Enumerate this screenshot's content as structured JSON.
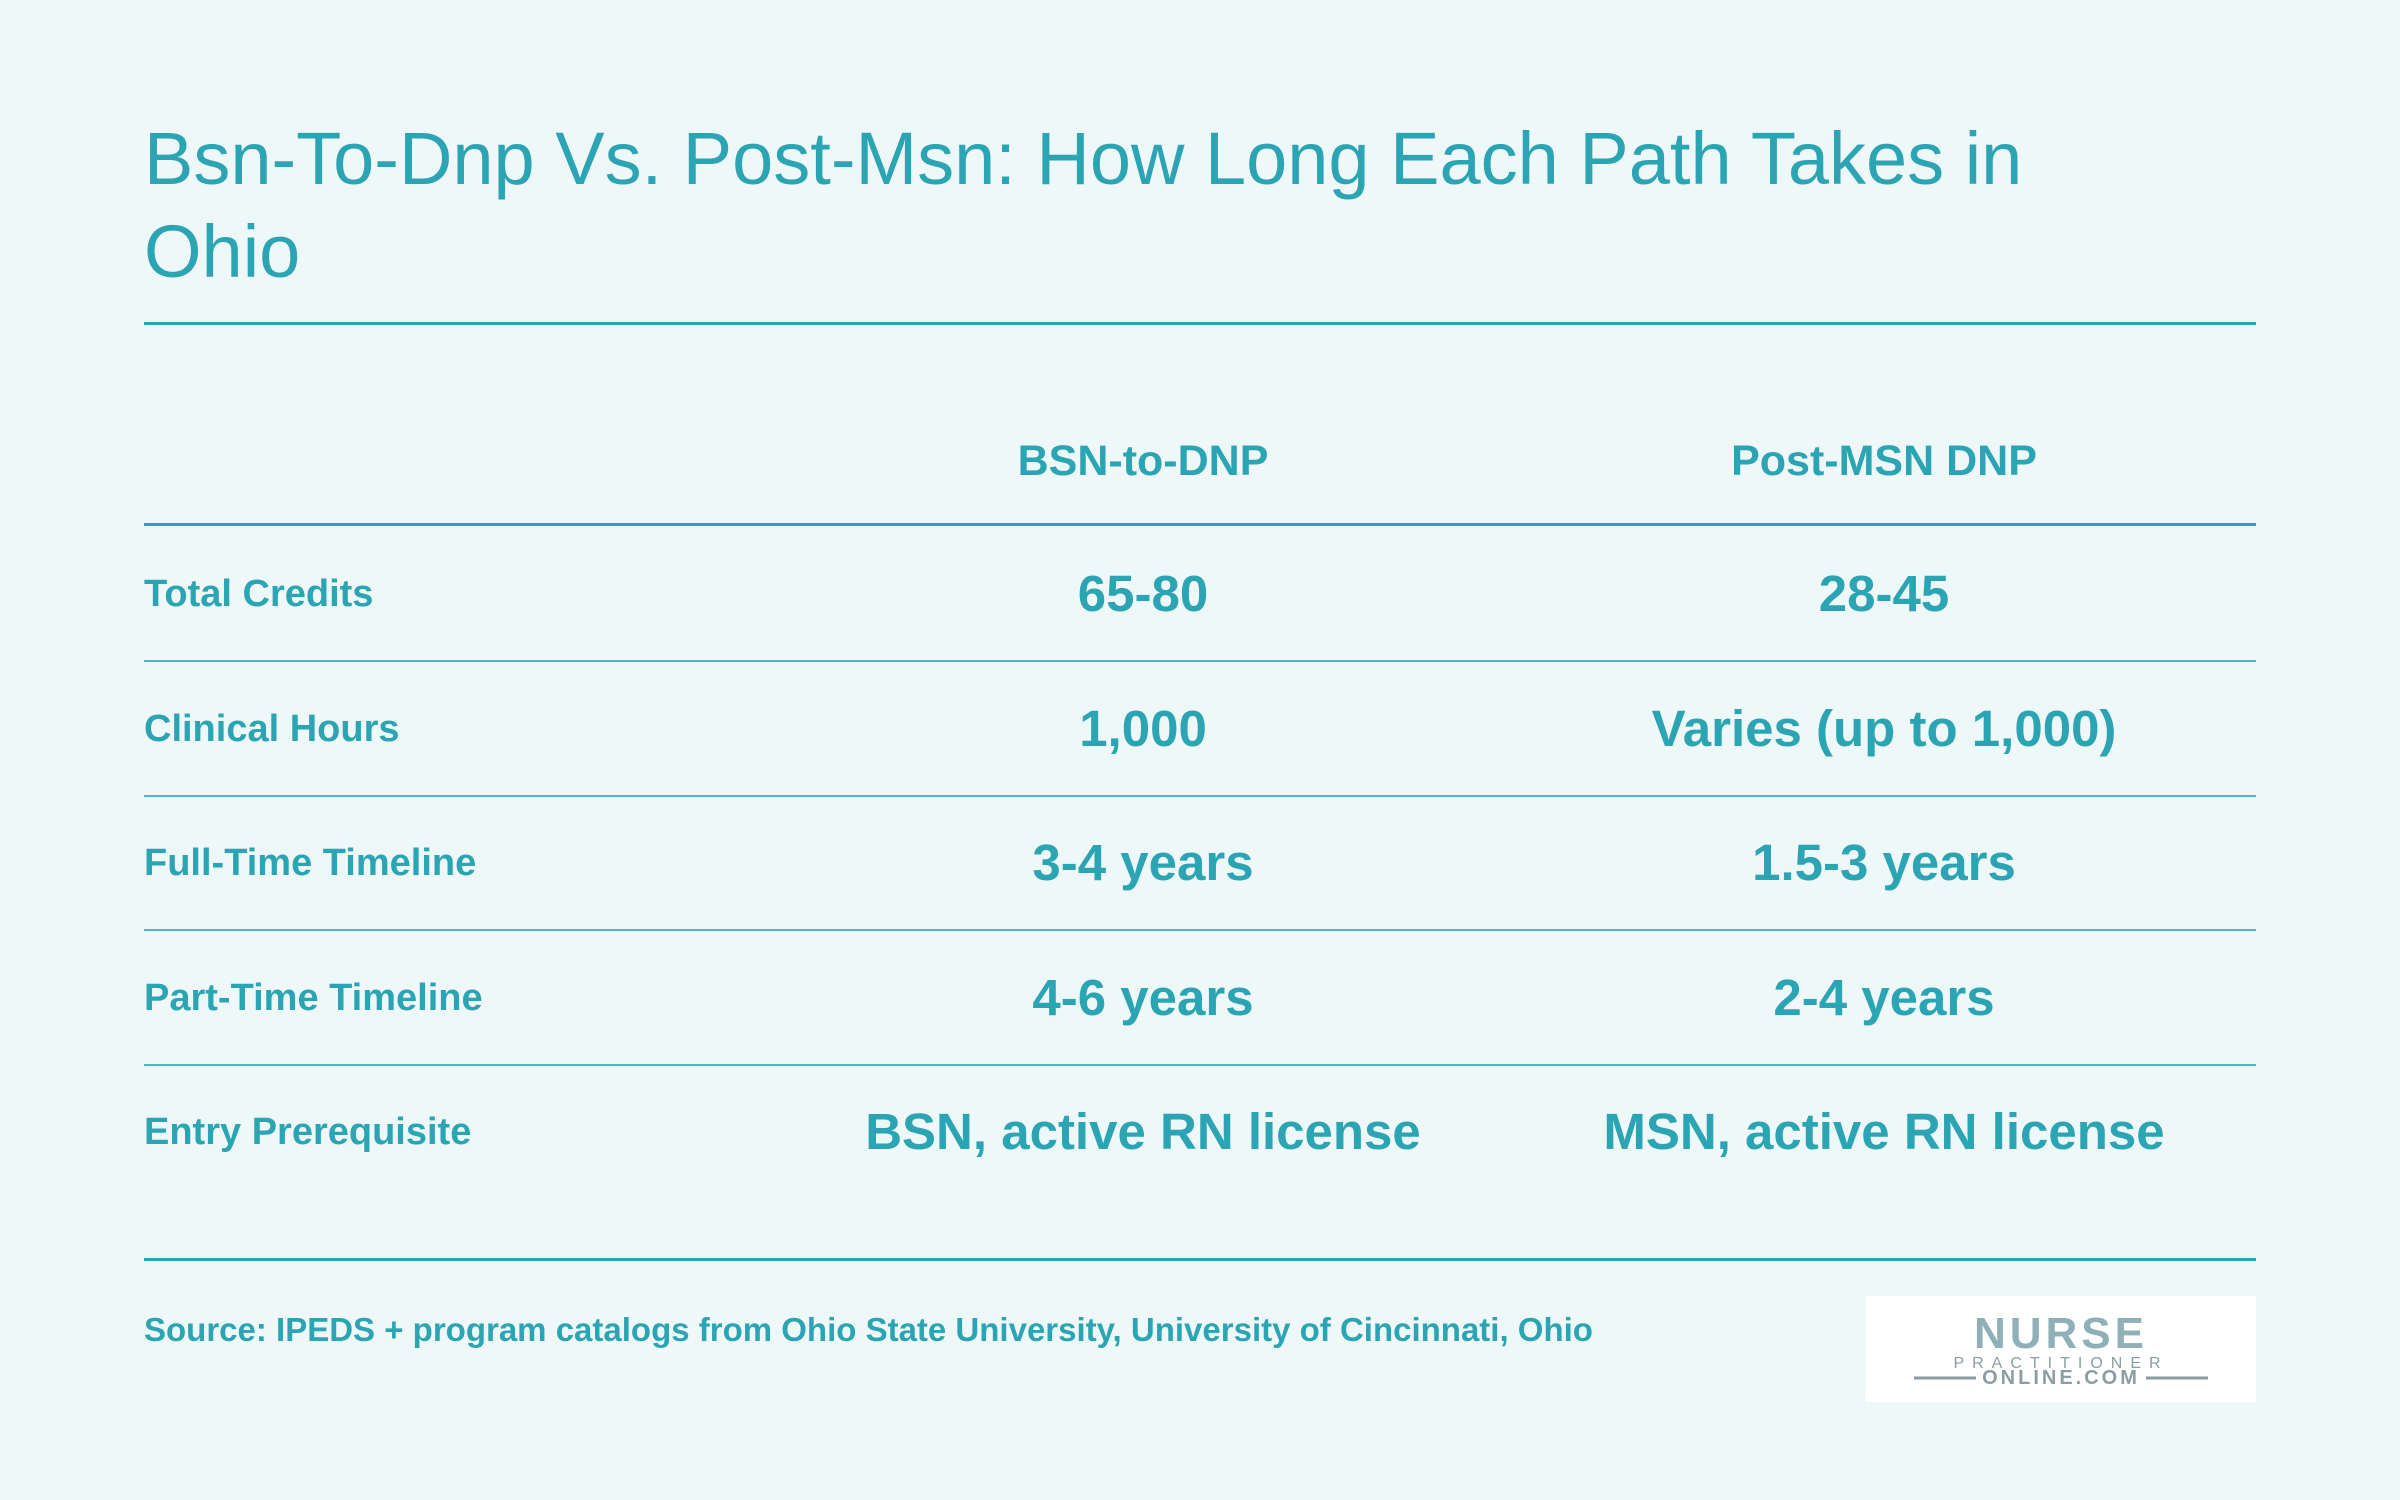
{
  "header": {
    "title": "Bsn-To-Dnp Vs. Post-Msn: How Long Each Path Takes in Ohio"
  },
  "table": {
    "columns": [
      "BSN-to-DNP",
      "Post-MSN DNP"
    ],
    "rows": [
      [
        "Total Credits",
        "65-80",
        "28-45"
      ],
      [
        "Clinical Hours",
        "1,000",
        "Varies (up to 1,000)"
      ],
      [
        "Full-Time Timeline",
        "3-4 years",
        "1.5-3 years"
      ],
      [
        "Part-Time Timeline",
        "4-6 years",
        "2-4 years"
      ],
      [
        "Entry Prerequisite",
        "BSN, active RN license",
        "MSN, active RN license"
      ]
    ]
  },
  "footer": {
    "source": "Source: IPEDS + program catalogs from Ohio State University, University of Cincinnati, Ohio"
  },
  "logo": {
    "line1": "NURSE",
    "line2": "PRACTITIONER",
    "line3": "ONLINE.COM"
  }
}
